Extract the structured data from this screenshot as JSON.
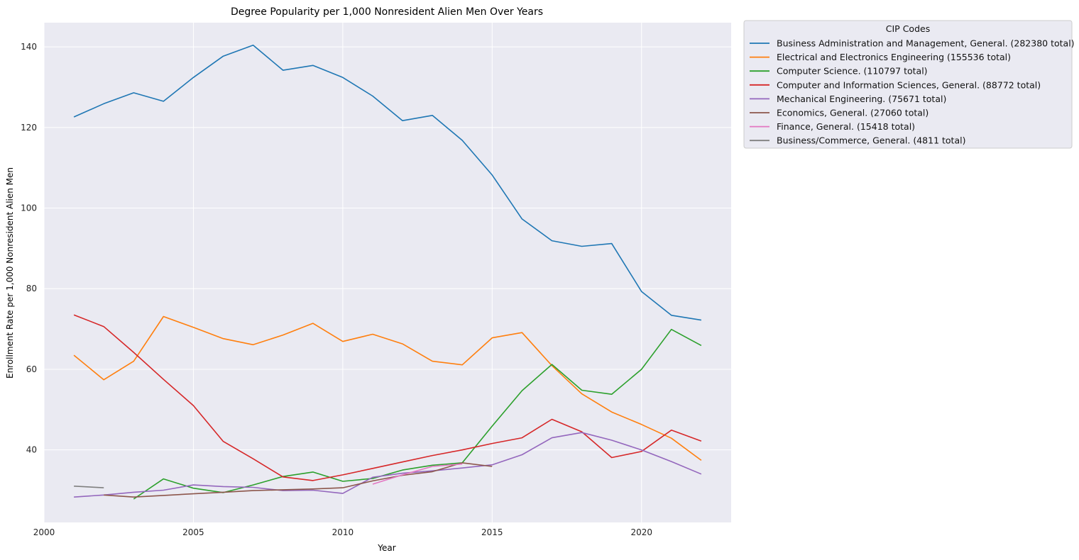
{
  "chart_data": {
    "type": "line",
    "title": "Degree Popularity per 1,000 Nonresident Alien Men Over Years",
    "xlabel": "Year",
    "ylabel": "Enrollment Rate per 1,000 Nonresident Alien Men",
    "xlim": [
      2000,
      2023
    ],
    "ylim": [
      22,
      146
    ],
    "x_ticks": [
      2000,
      2005,
      2010,
      2015,
      2020
    ],
    "y_ticks": [
      40,
      60,
      80,
      100,
      120,
      140
    ],
    "grid": true,
    "legend": {
      "title": "CIP Codes",
      "placement": "outside-top-right"
    },
    "series": [
      {
        "name": "Business Administration and Management, General. (282380 total)",
        "color": "#1f77b4",
        "x": [
          2001,
          2002,
          2003,
          2004,
          2005,
          2006,
          2007,
          2008,
          2009,
          2010,
          2011,
          2012,
          2013,
          2014,
          2015,
          2016,
          2017,
          2018,
          2019,
          2020,
          2021,
          2022
        ],
        "y": [
          122.6,
          125.9,
          128.6,
          126.5,
          132.4,
          137.7,
          140.4,
          134.2,
          135.4,
          132.4,
          127.8,
          121.7,
          123.0,
          116.8,
          108.2,
          97.3,
          91.9,
          90.5,
          91.2,
          79.3,
          73.4,
          72.2
        ]
      },
      {
        "name": "Electrical and Electronics Engineering (155536 total)",
        "color": "#ff7f0e",
        "x": [
          2001,
          2002,
          2003,
          2004,
          2005,
          2006,
          2007,
          2008,
          2009,
          2010,
          2011,
          2012,
          2013,
          2014,
          2015,
          2016,
          2017,
          2018,
          2019,
          2020,
          2021,
          2022
        ],
        "y": [
          63.5,
          57.4,
          62.0,
          73.1,
          70.4,
          67.6,
          66.1,
          68.5,
          71.4,
          66.9,
          68.7,
          66.3,
          62.0,
          61.1,
          67.8,
          69.1,
          60.9,
          53.9,
          49.4,
          46.3,
          42.9,
          37.4
        ]
      },
      {
        "name": "Computer Science. (110797 total)",
        "color": "#2ca02c",
        "x": [
          2003,
          2004,
          2005,
          2006,
          2007,
          2008,
          2009,
          2010,
          2011,
          2012,
          2013,
          2014,
          2015,
          2016,
          2017,
          2018,
          2019,
          2020,
          2021,
          2022
        ],
        "y": [
          27.8,
          32.8,
          30.5,
          29.4,
          31.3,
          33.4,
          34.5,
          32.2,
          32.9,
          35.0,
          36.2,
          36.8,
          45.9,
          54.7,
          61.2,
          54.8,
          53.8,
          60.0,
          69.9,
          65.9
        ]
      },
      {
        "name": "Computer and Information Sciences, General. (88772 total)",
        "color": "#d62728",
        "x": [
          2001,
          2002,
          2003,
          2004,
          2005,
          2006,
          2007,
          2008,
          2009,
          2010,
          2011,
          2012,
          2013,
          2014,
          2015,
          2016,
          2017,
          2018,
          2019,
          2020,
          2021,
          2022
        ],
        "y": [
          73.5,
          70.6,
          64.2,
          57.5,
          51.0,
          42.1,
          37.8,
          33.3,
          32.4,
          33.8,
          35.4,
          37.0,
          38.6,
          40.0,
          41.6,
          43.0,
          47.6,
          44.5,
          38.1,
          39.6,
          44.9,
          42.2
        ]
      },
      {
        "name": "Mechanical Engineering. (75671 total)",
        "color": "#9467bd",
        "x": [
          2001,
          2002,
          2003,
          2004,
          2005,
          2006,
          2007,
          2008,
          2009,
          2010,
          2011,
          2012,
          2013,
          2014,
          2015,
          2016,
          2017,
          2018,
          2019,
          2020,
          2021,
          2022
        ],
        "y": [
          28.3,
          28.8,
          29.5,
          30.0,
          31.3,
          30.9,
          30.7,
          29.9,
          30.0,
          29.2,
          33.2,
          34.2,
          34.8,
          35.5,
          36.3,
          38.8,
          43.0,
          44.3,
          42.4,
          40.0,
          37.1,
          34.0
        ]
      },
      {
        "name": "Economics, General. (27060 total)",
        "color": "#8c564b",
        "x": [
          2002,
          2003,
          2004,
          2005,
          2006,
          2007,
          2008,
          2009,
          2010,
          2011,
          2012,
          2013,
          2014,
          2015
        ],
        "y": [
          28.8,
          28.3,
          28.7,
          29.1,
          29.5,
          29.9,
          30.1,
          30.3,
          30.6,
          32.3,
          33.7,
          34.6,
          36.8,
          35.9
        ]
      },
      {
        "name": "Finance, General. (15418 total)",
        "color": "#e377c2",
        "x": [
          2011,
          2012,
          2013,
          2014
        ],
        "y": [
          31.5,
          33.8,
          35.9,
          36.5
        ]
      },
      {
        "name": "Business/Commerce, General. (4811 total)",
        "color": "#7f7f7f",
        "x": [
          2001,
          2002
        ],
        "y": [
          31.0,
          30.6
        ]
      }
    ]
  }
}
